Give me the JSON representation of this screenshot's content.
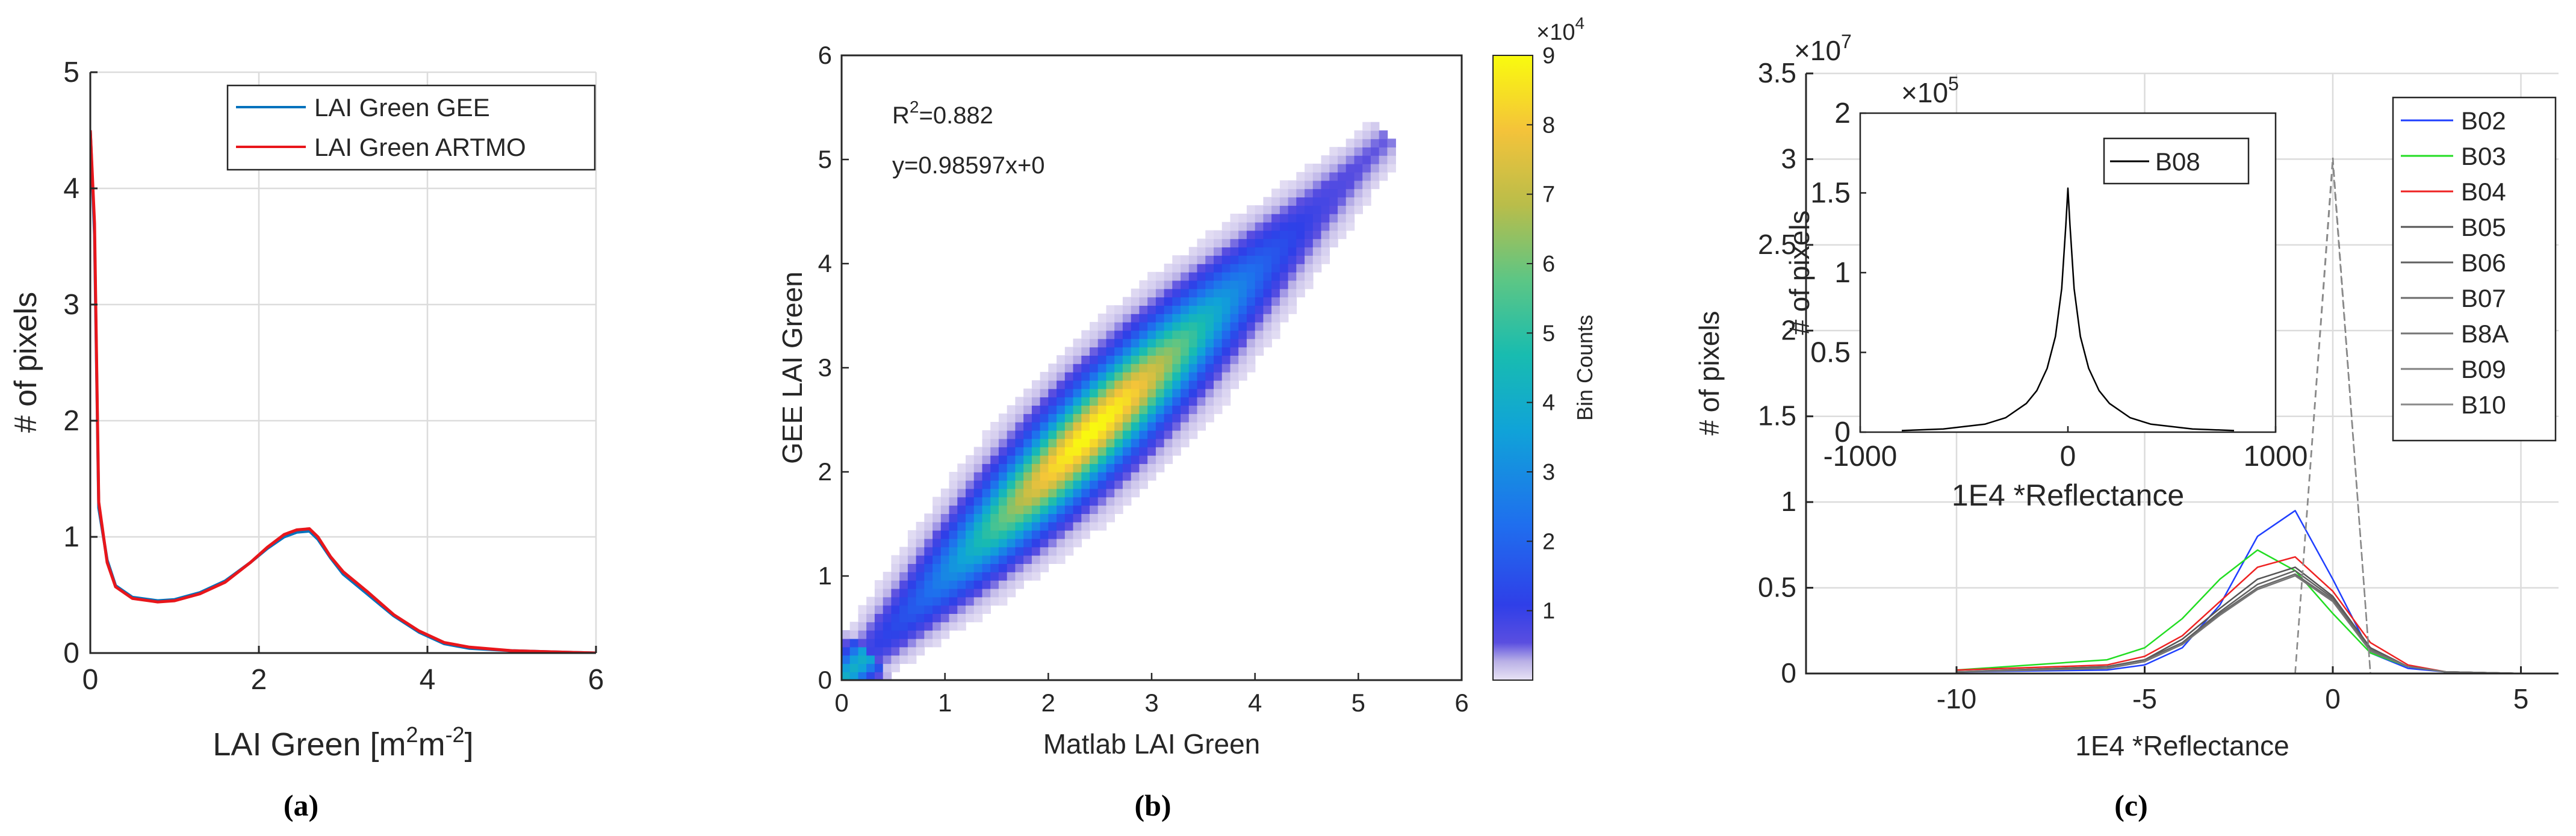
{
  "captions": [
    "(a)",
    "(b)",
    "(c)"
  ],
  "chart_data": [
    {
      "id": "a",
      "type": "line",
      "title": "",
      "xlabel": "LAI Green [m^2m^-2]",
      "xlabel_main": "LAI Green [m",
      "xlabel_sup1": "2",
      "xlabel_mid": "m",
      "xlabel_sup2": "-2",
      "xlabel_end": "]",
      "ylabel": "# of pixels",
      "xlim": [
        0,
        6
      ],
      "ylim": [
        0,
        5
      ],
      "xticks": [
        0,
        2,
        4,
        6
      ],
      "yticks": [
        0,
        1,
        2,
        3,
        4,
        5
      ],
      "grid": true,
      "legend_position": "top-right",
      "series": [
        {
          "name": "LAI Green GEE",
          "color": "#0072BD",
          "x": [
            0,
            0.05,
            0.1,
            0.2,
            0.3,
            0.5,
            0.8,
            1.0,
            1.3,
            1.6,
            1.9,
            2.1,
            2.3,
            2.45,
            2.6,
            2.7,
            2.85,
            3.0,
            3.3,
            3.6,
            3.9,
            4.2,
            4.5,
            5.0,
            5.5,
            6.0
          ],
          "y": [
            4.5,
            3.6,
            1.25,
            0.8,
            0.58,
            0.48,
            0.45,
            0.46,
            0.52,
            0.62,
            0.78,
            0.9,
            1.0,
            1.04,
            1.05,
            0.98,
            0.82,
            0.68,
            0.5,
            0.32,
            0.18,
            0.08,
            0.04,
            0.02,
            0.01,
            0.0
          ]
        },
        {
          "name": "LAI Green ARTMO",
          "color": "#E8161B",
          "x": [
            0,
            0.05,
            0.1,
            0.2,
            0.3,
            0.5,
            0.8,
            1.0,
            1.3,
            1.6,
            1.9,
            2.1,
            2.3,
            2.45,
            2.6,
            2.7,
            2.85,
            3.0,
            3.3,
            3.6,
            3.9,
            4.2,
            4.5,
            5.0,
            5.5,
            6.0
          ],
          "y": [
            4.5,
            3.7,
            1.3,
            0.78,
            0.57,
            0.47,
            0.44,
            0.45,
            0.51,
            0.61,
            0.78,
            0.91,
            1.02,
            1.06,
            1.07,
            1.0,
            0.83,
            0.7,
            0.52,
            0.33,
            0.19,
            0.09,
            0.05,
            0.02,
            0.01,
            0.0
          ]
        }
      ]
    },
    {
      "id": "b",
      "type": "heatmap",
      "title": "",
      "xlabel": "Matlab LAI Green",
      "ylabel": "GEE LAI Green",
      "xlim": [
        0,
        6
      ],
      "ylim": [
        0,
        6
      ],
      "xticks": [
        0,
        1,
        2,
        3,
        4,
        5,
        6
      ],
      "yticks": [
        0,
        1,
        2,
        3,
        4,
        5,
        6
      ],
      "annotations": [
        "R^2=0.882",
        "y=0.98597x+0"
      ],
      "annot_r2_main": "R",
      "annot_r2_sup": "2",
      "annot_r2_end": "=0.882",
      "annot_fit": "y=0.98597x+0",
      "regression": {
        "slope": 0.98597,
        "intercept": 0,
        "r2": 0.882
      },
      "colorbar": {
        "label": "Bin Counts",
        "range": [
          0,
          90000
        ],
        "ticks": [
          1,
          2,
          3,
          4,
          5,
          6,
          7,
          8,
          9
        ],
        "exponent_label": "×10",
        "exponent_power": "4"
      },
      "density_model": {
        "x_range": [
          0,
          5.2
        ],
        "peak_x": 2.4,
        "peak_value": 90000,
        "note": "counts concentrated along y≈0.986x, spreading wider at mid values"
      }
    },
    {
      "id": "c",
      "type": "line",
      "title": "",
      "xlabel": "1E4 *Reflectance",
      "ylabel": "# of pixels",
      "xlim": [
        -14,
        6
      ],
      "ylim": [
        0,
        3.5
      ],
      "xticks": [
        -10,
        -5,
        0,
        5
      ],
      "yticks": [
        0,
        0.5,
        1,
        1.5,
        2,
        2.5,
        3,
        3.5
      ],
      "y_exponent_label": "×10",
      "y_exponent_power": "7",
      "legend_position": "top-right",
      "series": [
        {
          "name": "B02",
          "color": "#1f3fff",
          "x": [
            -10,
            -6,
            -5,
            -4,
            -3,
            -2,
            -1,
            0,
            1,
            2,
            3,
            5
          ],
          "y": [
            0.01,
            0.02,
            0.05,
            0.15,
            0.4,
            0.8,
            0.95,
            0.55,
            0.12,
            0.03,
            0.01,
            0.0
          ]
        },
        {
          "name": "B03",
          "color": "#22dd22",
          "x": [
            -10,
            -6,
            -5,
            -4,
            -3,
            -2,
            -1,
            0,
            1,
            2,
            3,
            5
          ],
          "y": [
            0.02,
            0.08,
            0.15,
            0.32,
            0.55,
            0.72,
            0.6,
            0.35,
            0.12,
            0.04,
            0.01,
            0.0
          ]
        },
        {
          "name": "B04",
          "color": "#ee2222",
          "x": [
            -10,
            -6,
            -5,
            -4,
            -3,
            -2,
            -1,
            0,
            1,
            2,
            3,
            5
          ],
          "y": [
            0.02,
            0.05,
            0.1,
            0.22,
            0.42,
            0.62,
            0.68,
            0.48,
            0.18,
            0.05,
            0.01,
            0.0
          ]
        },
        {
          "name": "B05",
          "color": "#555555",
          "x": [
            -10,
            -6,
            -5,
            -4,
            -3,
            -2,
            -1,
            0,
            1,
            2,
            3,
            5
          ],
          "y": [
            0.01,
            0.04,
            0.08,
            0.2,
            0.38,
            0.55,
            0.62,
            0.45,
            0.15,
            0.04,
            0.01,
            0.0
          ]
        },
        {
          "name": "B06",
          "color": "#606060",
          "x": [
            -10,
            -6,
            -5,
            -4,
            -3,
            -2,
            -1,
            0,
            1,
            2,
            3,
            5
          ],
          "y": [
            0.01,
            0.04,
            0.08,
            0.18,
            0.36,
            0.52,
            0.6,
            0.44,
            0.14,
            0.04,
            0.01,
            0.0
          ]
        },
        {
          "name": "B07",
          "color": "#6a6a6a",
          "x": [
            -10,
            -6,
            -5,
            -4,
            -3,
            -2,
            -1,
            0,
            1,
            2,
            3,
            5
          ],
          "y": [
            0.01,
            0.03,
            0.07,
            0.17,
            0.35,
            0.5,
            0.58,
            0.43,
            0.14,
            0.04,
            0.01,
            0.0
          ]
        },
        {
          "name": "B8A",
          "color": "#757575",
          "x": [
            -10,
            -6,
            -5,
            -4,
            -3,
            -2,
            -1,
            0,
            1,
            2,
            3,
            5
          ],
          "y": [
            0.01,
            0.03,
            0.07,
            0.17,
            0.34,
            0.49,
            0.57,
            0.42,
            0.13,
            0.04,
            0.01,
            0.0
          ]
        },
        {
          "name": "B09",
          "color": "#808080",
          "x": [
            -1,
            0,
            1
          ],
          "y": [
            0.0,
            3.01,
            0.0
          ]
        },
        {
          "name": "B10",
          "color": "#8a8a8a",
          "x": [
            -1,
            0,
            1
          ],
          "y": [
            0.0,
            2.98,
            0.0
          ]
        }
      ],
      "inset": {
        "type": "line",
        "xlabel": "1E4 *Reflectance",
        "ylabel": "# of pixels",
        "xlim": [
          -1000,
          1000
        ],
        "ylim": [
          0,
          2
        ],
        "xticks": [
          -1000,
          0,
          1000
        ],
        "yticks": [
          0,
          0.5,
          1,
          1.5,
          2
        ],
        "y_exponent_label": "×10",
        "y_exponent_power": "5",
        "series": [
          {
            "name": "B08",
            "color": "#000000",
            "x": [
              -800,
              -600,
              -400,
              -300,
              -200,
              -150,
              -100,
              -60,
              -30,
              -10,
              0,
              10,
              30,
              60,
              100,
              150,
              200,
              300,
              400,
              600,
              800
            ],
            "y": [
              0.01,
              0.02,
              0.05,
              0.09,
              0.18,
              0.26,
              0.4,
              0.6,
              0.9,
              1.3,
              1.53,
              1.3,
              0.9,
              0.6,
              0.4,
              0.26,
              0.18,
              0.09,
              0.05,
              0.02,
              0.01
            ]
          }
        ]
      }
    }
  ]
}
